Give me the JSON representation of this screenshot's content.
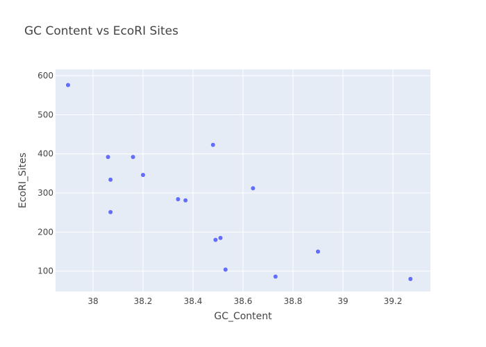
{
  "chart_data": {
    "type": "scatter",
    "title": "GC Content vs EcoRI Sites",
    "xlabel": "GC_Content",
    "ylabel": "EcoRI_Sites",
    "xlim": [
      37.85,
      39.35
    ],
    "ylim": [
      48,
      616
    ],
    "xticks": [
      38,
      38.2,
      38.4,
      38.6,
      38.8,
      39,
      39.2
    ],
    "xtick_labels": [
      "38",
      "38.2",
      "38.4",
      "38.6",
      "38.8",
      "39",
      "39.2"
    ],
    "yticks": [
      100,
      200,
      300,
      400,
      500,
      600
    ],
    "ytick_labels": [
      "100",
      "200",
      "300",
      "400",
      "500",
      "600"
    ],
    "grid": true,
    "marker_color": "#636efa",
    "plot_background": "#e5ecf6",
    "points": [
      {
        "x": 37.9,
        "y": 576
      },
      {
        "x": 38.06,
        "y": 392
      },
      {
        "x": 38.07,
        "y": 334
      },
      {
        "x": 38.07,
        "y": 251
      },
      {
        "x": 38.16,
        "y": 392
      },
      {
        "x": 38.2,
        "y": 346
      },
      {
        "x": 38.34,
        "y": 284
      },
      {
        "x": 38.37,
        "y": 281
      },
      {
        "x": 38.48,
        "y": 423
      },
      {
        "x": 38.49,
        "y": 180
      },
      {
        "x": 38.51,
        "y": 185
      },
      {
        "x": 38.53,
        "y": 104
      },
      {
        "x": 38.64,
        "y": 312
      },
      {
        "x": 38.73,
        "y": 86
      },
      {
        "x": 38.9,
        "y": 150
      },
      {
        "x": 39.27,
        "y": 80
      }
    ]
  }
}
